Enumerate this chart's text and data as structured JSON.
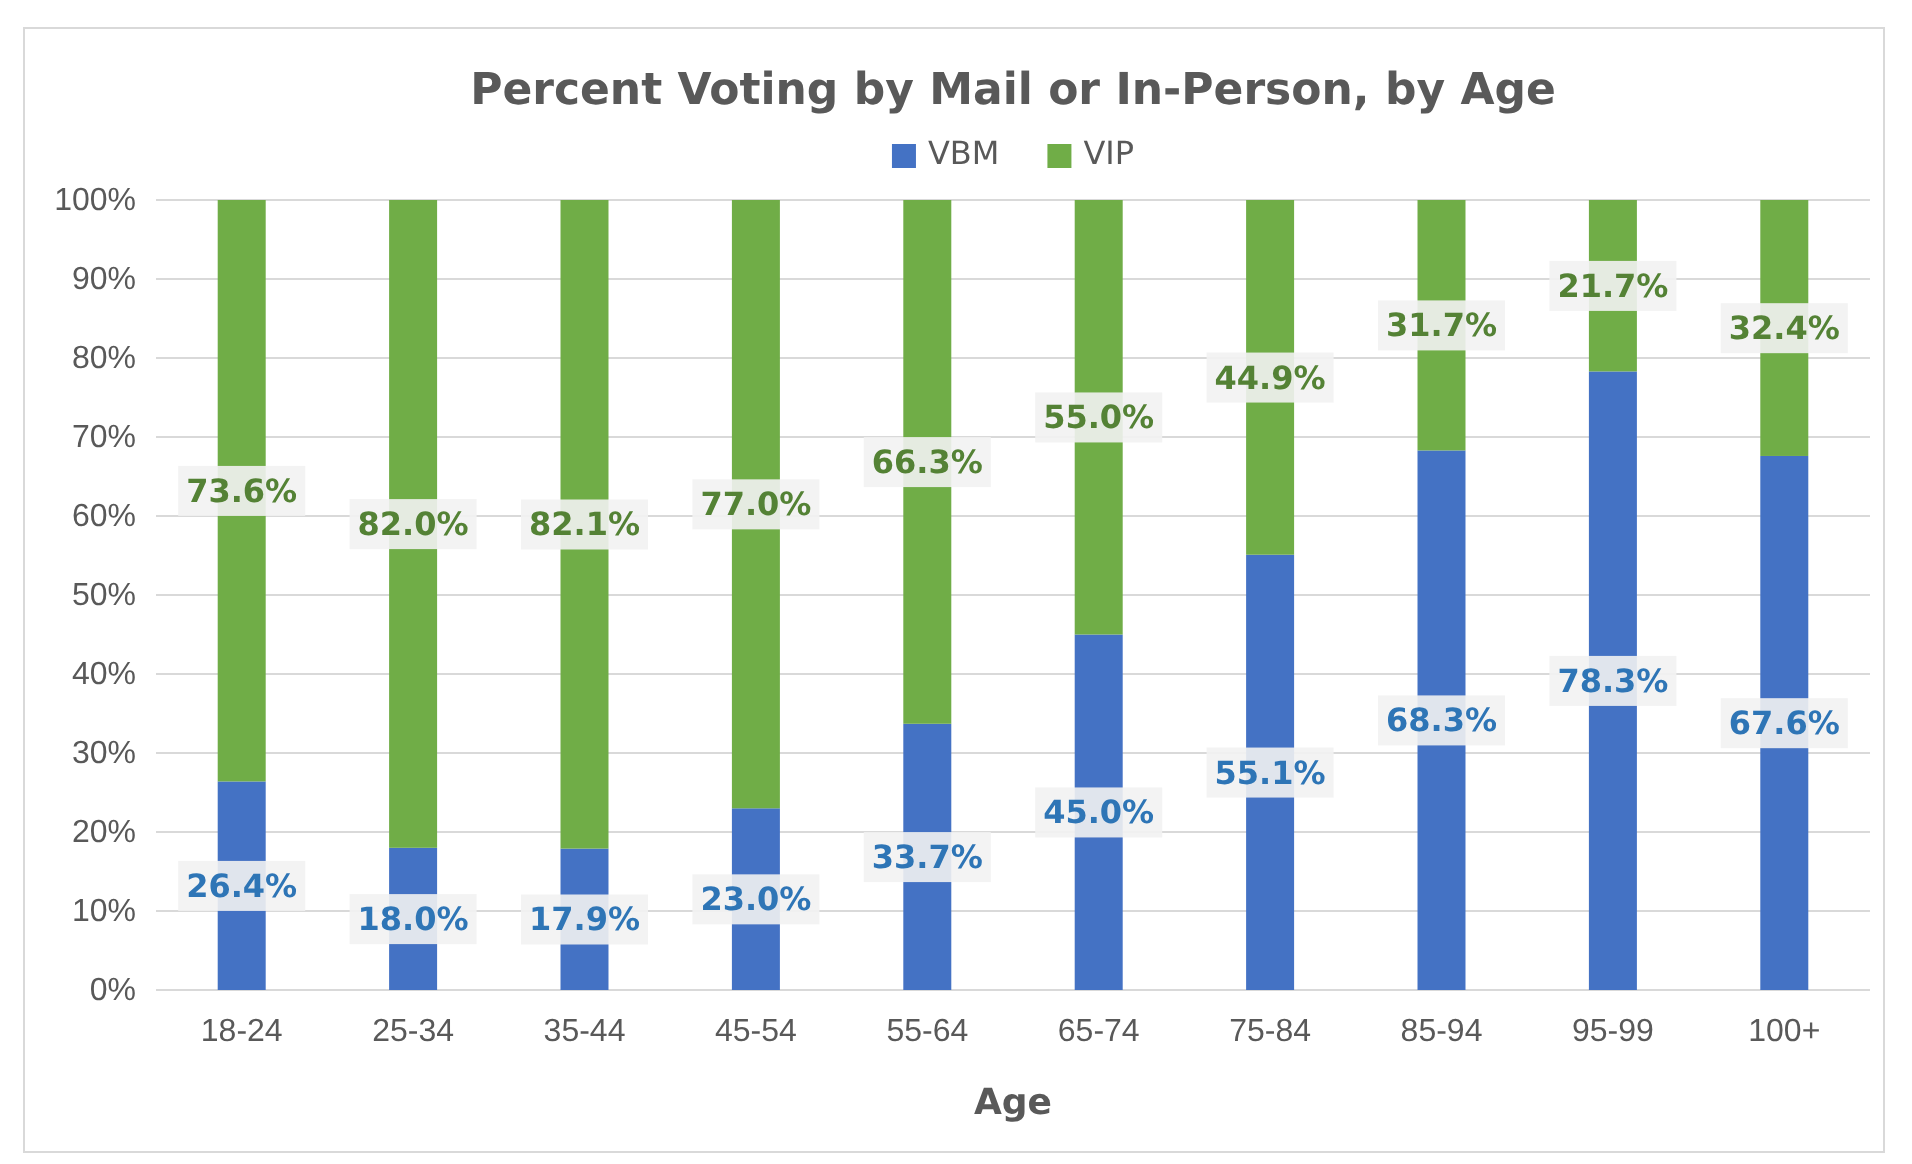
{
  "chart_data": {
    "type": "bar",
    "title": "Percent Voting by Mail or In-Person, by Age",
    "xlabel": "Age",
    "stacked": true,
    "categories": [
      "18-24",
      "25-34",
      "35-44",
      "45-54",
      "55-64",
      "65-74",
      "75-84",
      "85-94",
      "95-99",
      "100+"
    ],
    "series": [
      {
        "name": "VBM",
        "color": "#4472c4",
        "values": [
          26.4,
          18.0,
          17.9,
          23.0,
          33.7,
          45.0,
          55.1,
          68.3,
          78.3,
          67.6
        ],
        "value_labels": [
          "26.4%",
          "18.0%",
          "17.9%",
          "23.0%",
          "33.7%",
          "45.0%",
          "55.1%",
          "68.3%",
          "78.3%",
          "67.6%"
        ]
      },
      {
        "name": "VIP",
        "color": "#70ad47",
        "values": [
          73.6,
          82.0,
          82.1,
          77.0,
          66.3,
          55.0,
          44.9,
          31.7,
          21.7,
          32.4
        ],
        "value_labels": [
          "73.6%",
          "82.0%",
          "82.1%",
          "77.0%",
          "66.3%",
          "55.0%",
          "44.9%",
          "31.7%",
          "21.7%",
          "32.4%"
        ]
      }
    ],
    "ylim": [
      0,
      100
    ],
    "yticks": [
      {
        "value": 0,
        "label": "0%"
      },
      {
        "value": 10,
        "label": "10%"
      },
      {
        "value": 20,
        "label": "20%"
      },
      {
        "value": 30,
        "label": "30%"
      },
      {
        "value": 40,
        "label": "40%"
      },
      {
        "value": 50,
        "label": "50%"
      },
      {
        "value": 60,
        "label": "60%"
      },
      {
        "value": 70,
        "label": "70%"
      },
      {
        "value": 80,
        "label": "80%"
      },
      {
        "value": 90,
        "label": "90%"
      },
      {
        "value": 100,
        "label": "100%"
      }
    ],
    "grid": "y",
    "legend": "top"
  }
}
